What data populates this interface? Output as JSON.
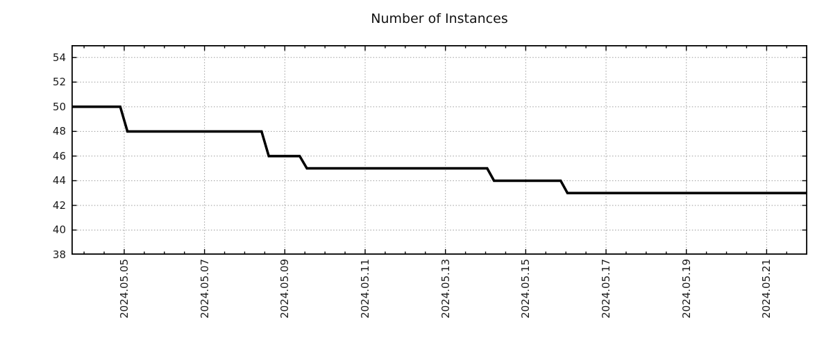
{
  "chart_data": {
    "type": "line",
    "title": "Number of Instances",
    "xlabel": "",
    "ylabel": "",
    "grid": true,
    "legend": false,
    "x_axis": {
      "unit": "days relative to 2024.05.05",
      "range": [
        -1.313,
        17.013
      ],
      "minor_tick_step": 0.5,
      "major_ticks": [
        {
          "pos": 0,
          "label": "2024.05.05"
        },
        {
          "pos": 2,
          "label": "2024.05.07"
        },
        {
          "pos": 4,
          "label": "2024.05.09"
        },
        {
          "pos": 6,
          "label": "2024.05.11"
        },
        {
          "pos": 8,
          "label": "2024.05.13"
        },
        {
          "pos": 10,
          "label": "2024.05.15"
        },
        {
          "pos": 12,
          "label": "2024.05.17"
        },
        {
          "pos": 14,
          "label": "2024.05.19"
        },
        {
          "pos": 16,
          "label": "2024.05.21"
        }
      ]
    },
    "y_axis": {
      "range": [
        38,
        55
      ],
      "ticks": [
        38,
        40,
        42,
        44,
        46,
        48,
        50,
        52,
        54
      ]
    },
    "series": [
      {
        "name": "Number of Instances",
        "color": "#000000",
        "points": [
          [
            -1.313,
            50
          ],
          [
            -0.1,
            50
          ],
          [
            0.08,
            48
          ],
          [
            3.42,
            48
          ],
          [
            3.6,
            46
          ],
          [
            4.37,
            46
          ],
          [
            4.55,
            45
          ],
          [
            9.04,
            45
          ],
          [
            9.21,
            44
          ],
          [
            10.87,
            44
          ],
          [
            11.04,
            43
          ],
          [
            17.013,
            43
          ]
        ]
      }
    ],
    "style": {
      "background": "#ffffff",
      "grid_color": "#9a9a9a",
      "axis_color": "#000000",
      "text_color": "#1a1a1a",
      "line_color": "#000000"
    }
  }
}
